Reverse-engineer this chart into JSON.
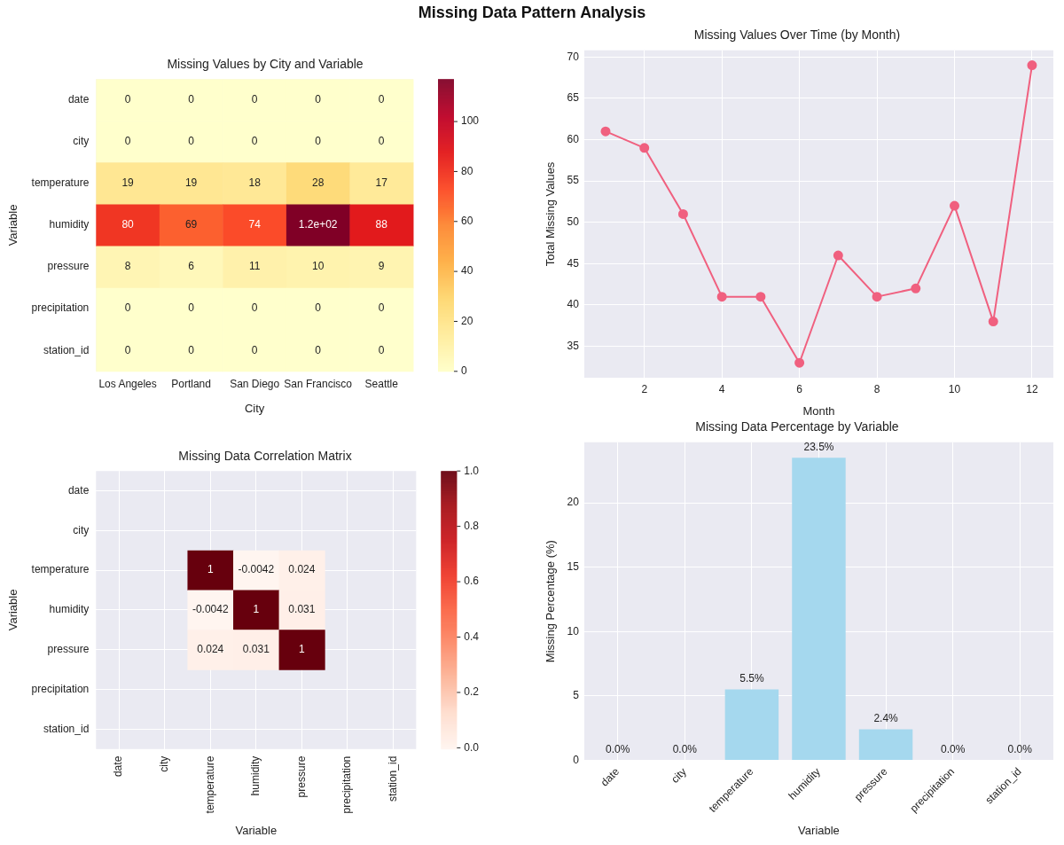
{
  "chart_data": [
    {
      "type": "other",
      "title": "Missing Data Pattern Analysis"
    },
    {
      "type": "heatmap",
      "title": "Missing Values by City and Variable",
      "xlabel": "City",
      "ylabel": "Variable",
      "categories": [
        "Los Angeles",
        "Portland",
        "San Diego",
        "San Francisco",
        "Seattle"
      ],
      "y_categories": [
        "date",
        "city",
        "temperature",
        "humidity",
        "pressure",
        "precipitation",
        "station_id"
      ],
      "cells": [
        [
          0,
          0,
          0,
          0,
          0
        ],
        [
          0,
          0,
          0,
          0,
          0
        ],
        [
          19,
          19,
          18,
          28,
          17
        ],
        [
          80,
          69,
          74,
          117,
          88
        ],
        [
          8,
          6,
          11,
          10,
          9
        ],
        [
          0,
          0,
          0,
          0,
          0
        ],
        [
          0,
          0,
          0,
          0,
          0
        ]
      ],
      "cell_labels": [
        [
          "0",
          "0",
          "0",
          "0",
          "0"
        ],
        [
          "0",
          "0",
          "0",
          "0",
          "0"
        ],
        [
          "19",
          "19",
          "18",
          "28",
          "17"
        ],
        [
          "80",
          "69",
          "74",
          "1.2e+02",
          "88"
        ],
        [
          "8",
          "6",
          "11",
          "10",
          "9"
        ],
        [
          "0",
          "0",
          "0",
          "0",
          "0"
        ],
        [
          "0",
          "0",
          "0",
          "0",
          "0"
        ]
      ],
      "clim": [
        0,
        117
      ],
      "cticks": [
        0,
        20,
        40,
        60,
        80,
        100
      ]
    },
    {
      "type": "line",
      "title": "Missing Values Over Time (by Month)",
      "xlabel": "Month",
      "ylabel": "Total Missing Values",
      "x": [
        1,
        2,
        3,
        4,
        5,
        6,
        7,
        8,
        9,
        10,
        11,
        12
      ],
      "values": [
        61,
        59,
        51,
        41,
        41,
        33,
        46,
        41,
        42,
        52,
        38,
        69
      ],
      "color": "#f0607f",
      "xlim": [
        0.45,
        12.55
      ],
      "xticks": [
        2,
        4,
        6,
        8,
        10,
        12
      ],
      "ylim": [
        31.2,
        70.8
      ],
      "yticks": [
        35,
        40,
        45,
        50,
        55,
        60,
        65,
        70
      ],
      "grid": true,
      "marker": "circle"
    },
    {
      "type": "heatmap",
      "title": "Missing Data Correlation Matrix",
      "xlabel": "Variable",
      "ylabel": "Variable",
      "categories": [
        "date",
        "city",
        "temperature",
        "humidity",
        "pressure",
        "precipitation",
        "station_id"
      ],
      "y_categories": [
        "date",
        "city",
        "temperature",
        "humidity",
        "pressure",
        "precipitation",
        "station_id"
      ],
      "cells": [
        [
          null,
          null,
          null,
          null,
          null,
          null,
          null
        ],
        [
          null,
          null,
          null,
          null,
          null,
          null,
          null
        ],
        [
          null,
          null,
          1,
          -0.0042,
          0.024,
          null,
          null
        ],
        [
          null,
          null,
          -0.0042,
          1,
          0.031,
          null,
          null
        ],
        [
          null,
          null,
          0.024,
          0.031,
          1,
          null,
          null
        ],
        [
          null,
          null,
          null,
          null,
          null,
          null,
          null
        ],
        [
          null,
          null,
          null,
          null,
          null,
          null,
          null
        ]
      ],
      "data_labels": true,
      "clim": [
        -0.0042,
        1
      ],
      "cticks": [
        {
          "value": 0,
          "label": "0.0"
        },
        {
          "value": 0.2,
          "label": "0.2"
        },
        {
          "value": 0.4,
          "label": "0.4"
        },
        {
          "value": 0.6,
          "label": "0.6"
        },
        {
          "value": 0.8,
          "label": "0.8"
        },
        {
          "value": 1,
          "label": "1.0"
        }
      ],
      "grid": true
    },
    {
      "type": "bar",
      "title": "Missing Data Percentage by Variable",
      "xlabel": "Variable",
      "ylabel": "Missing Percentage (%)",
      "categories": [
        "date",
        "city",
        "temperature",
        "humidity",
        "pressure",
        "precipitation",
        "station_id"
      ],
      "values": [
        0,
        0,
        5.5,
        23.5,
        2.4,
        0,
        0
      ],
      "color": "#a5d8ee",
      "value_labels": [
        "0.0%",
        "0.0%",
        "5.5%",
        "23.5%",
        "2.4%",
        "0.0%",
        "0.0%"
      ],
      "ylim": [
        0,
        24.7
      ],
      "yticks": [
        0,
        5,
        10,
        15,
        20
      ],
      "grid": true
    }
  ]
}
